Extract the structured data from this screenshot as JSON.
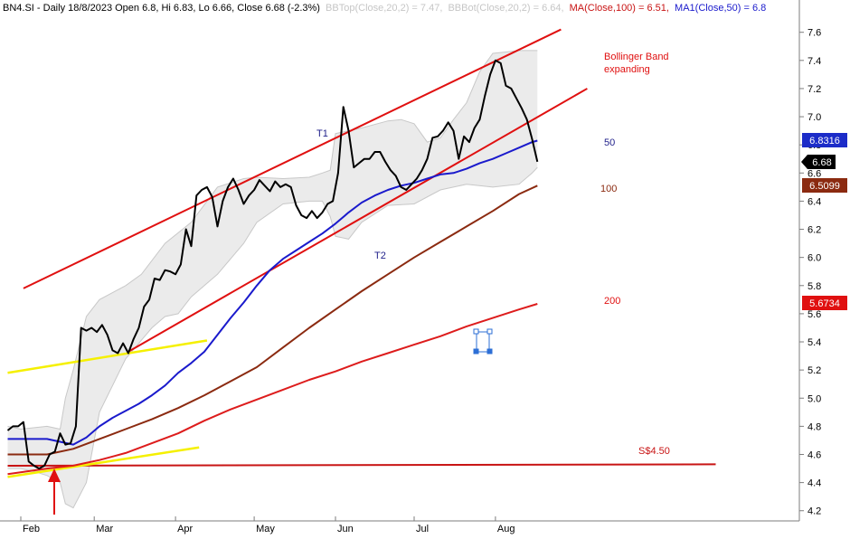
{
  "header": {
    "symbol_info": "BN4.SI - Daily 18/8/2023 Open 6.8, Hi 6.83, Lo 6.66, Close 6.68 (-2.3%)",
    "bbtop": "BBTop(Close,20,2) = 7.47,",
    "bbbot": "BBBot(Close,20,2) = 6.64,",
    "ma100": "MA(Close,100) = 6.51,",
    "ma50": "MA1(Close,50) = 6.8"
  },
  "colors": {
    "price": "#000000",
    "ma50": "#1a1acc",
    "ma100": "#8b2a10",
    "ma200": "#dd1c1c",
    "channel": "#e01010",
    "support": "#c81414",
    "yellow": "#f5f000",
    "band_fill": "#ebebeb",
    "band_edge": "#c8c8c8",
    "badge_ma50": "#1c2cc8",
    "badge_close": "#000000",
    "badge_ma100": "#8b2a10",
    "badge_ma200": "#e01010",
    "annot_red": "#e01010",
    "annot_navy": "#1f1f8a"
  },
  "annotations": {
    "t1": "T1",
    "t2": "T2",
    "bb_line1": "Bollinger Band",
    "bb_line2": "expanding",
    "label50": "50",
    "label100": "100",
    "label200": "200",
    "support": "S$4.50"
  },
  "badges": {
    "ma50": "6.8316",
    "close": "6.68",
    "ma100": "6.5099",
    "ma200": "5.6734"
  },
  "chart_data": {
    "type": "line",
    "x_range_days": [
      0,
      160
    ],
    "ylim": [
      4.15,
      7.75
    ],
    "y_ticks": [
      4.2,
      4.4,
      4.6,
      4.8,
      5.0,
      5.2,
      5.4,
      5.6,
      5.8,
      6.0,
      6.2,
      6.4,
      6.6,
      6.8,
      7.0,
      7.2,
      7.4,
      7.6
    ],
    "y_tick_labels": [
      "4.2",
      "4.4",
      "4.6",
      "4.8",
      "5.0",
      "5.2",
      "5.4",
      "5.6",
      "5.8",
      "6.0",
      "6.2",
      "6.4",
      "6.6",
      "6.8",
      "7.0",
      "7.2",
      "7.4",
      "7.6"
    ],
    "x_ticks": [
      {
        "label": "Feb",
        "day": 0
      },
      {
        "label": "Mar",
        "day": 28
      },
      {
        "label": "Apr",
        "day": 59
      },
      {
        "label": "May",
        "day": 89
      },
      {
        "label": "Jun",
        "day": 120
      },
      {
        "label": "Jul",
        "day": 150
      },
      {
        "label": "Aug",
        "day": 181
      }
    ],
    "series": [
      {
        "key": "close",
        "x": [
          -5,
          -3,
          -1,
          1,
          3,
          5,
          7,
          9,
          11,
          13,
          15,
          17,
          19,
          21,
          23,
          25,
          27,
          29,
          31,
          33,
          35,
          37,
          39,
          41,
          43,
          45,
          47,
          49,
          51,
          53,
          55,
          57,
          59,
          61,
          63,
          65,
          67,
          69,
          71,
          73,
          75,
          77,
          79,
          81,
          83,
          85,
          87,
          89,
          91,
          93,
          95,
          97,
          99,
          101,
          103,
          105,
          107,
          109,
          111,
          113,
          115,
          117,
          119,
          121,
          123,
          125,
          127,
          129,
          131,
          133,
          135,
          137,
          139,
          141,
          143,
          145,
          147,
          149,
          151,
          153,
          155,
          157,
          159,
          161,
          163,
          165,
          167,
          169,
          171,
          173,
          175,
          177,
          179,
          181,
          183,
          185,
          187,
          189,
          191,
          193,
          195,
          197
        ],
        "y": [
          4.77,
          4.8,
          4.8,
          4.83,
          4.55,
          4.52,
          4.5,
          4.52,
          4.6,
          4.62,
          4.75,
          4.67,
          4.68,
          4.8,
          5.5,
          5.48,
          5.5,
          5.47,
          5.52,
          5.45,
          5.34,
          5.32,
          5.39,
          5.32,
          5.42,
          5.5,
          5.65,
          5.7,
          5.85,
          5.84,
          5.91,
          5.9,
          5.88,
          5.95,
          6.2,
          6.08,
          6.44,
          6.48,
          6.5,
          6.43,
          6.22,
          6.4,
          6.5,
          6.56,
          6.48,
          6.38,
          6.44,
          6.48,
          6.55,
          6.51,
          6.47,
          6.54,
          6.5,
          6.52,
          6.5,
          6.37,
          6.3,
          6.28,
          6.33,
          6.28,
          6.32,
          6.38,
          6.4,
          6.6,
          7.07,
          6.9,
          6.64,
          6.67,
          6.7,
          6.7,
          6.75,
          6.75,
          6.68,
          6.62,
          6.58,
          6.5,
          6.48,
          6.52,
          6.56,
          6.62,
          6.7,
          6.85,
          6.86,
          6.9,
          6.96,
          6.9,
          6.7,
          6.86,
          6.82,
          6.92,
          6.98,
          7.15,
          7.3,
          7.4,
          7.38,
          7.22,
          7.2,
          7.13,
          7.06,
          6.98,
          6.84,
          6.68
        ]
      },
      {
        "key": "ma50",
        "x": [
          -5,
          5,
          10,
          15,
          20,
          25,
          30,
          35,
          40,
          45,
          50,
          55,
          60,
          65,
          70,
          75,
          80,
          85,
          90,
          95,
          100,
          105,
          110,
          115,
          120,
          125,
          130,
          135,
          140,
          145,
          150,
          155,
          160,
          165,
          170,
          175,
          180,
          185,
          190,
          195,
          197
        ],
        "y": [
          4.71,
          4.71,
          4.71,
          4.69,
          4.67,
          4.72,
          4.8,
          4.86,
          4.91,
          4.96,
          5.02,
          5.09,
          5.18,
          5.25,
          5.33,
          5.45,
          5.57,
          5.68,
          5.8,
          5.91,
          5.99,
          6.05,
          6.11,
          6.17,
          6.24,
          6.32,
          6.39,
          6.44,
          6.48,
          6.51,
          6.53,
          6.56,
          6.59,
          6.6,
          6.63,
          6.67,
          6.7,
          6.74,
          6.78,
          6.82,
          6.83
        ]
      },
      {
        "key": "ma100",
        "x": [
          -5,
          10,
          20,
          30,
          40,
          50,
          60,
          70,
          80,
          90,
          100,
          110,
          120,
          130,
          140,
          150,
          160,
          170,
          180,
          190,
          197
        ],
        "y": [
          4.6,
          4.6,
          4.64,
          4.71,
          4.78,
          4.85,
          4.93,
          5.02,
          5.12,
          5.22,
          5.36,
          5.5,
          5.63,
          5.76,
          5.88,
          6.0,
          6.11,
          6.22,
          6.33,
          6.45,
          6.51
        ]
      },
      {
        "key": "ma200",
        "x": [
          -5,
          10,
          20,
          30,
          40,
          50,
          60,
          70,
          80,
          90,
          100,
          110,
          120,
          130,
          140,
          150,
          160,
          170,
          180,
          190,
          197
        ],
        "y": [
          4.46,
          4.5,
          4.52,
          4.56,
          4.61,
          4.68,
          4.75,
          4.84,
          4.92,
          4.99,
          5.06,
          5.13,
          5.19,
          5.26,
          5.32,
          5.38,
          5.44,
          5.51,
          5.57,
          5.63,
          5.67
        ]
      },
      {
        "key": "bbtop",
        "x": [
          -5,
          0,
          10,
          15,
          17,
          20,
          25,
          30,
          40,
          46,
          55,
          65,
          75,
          85,
          90,
          100,
          110,
          115,
          118,
          120,
          130,
          140,
          145,
          150,
          155,
          160,
          165,
          170,
          175,
          180,
          185,
          190,
          195,
          197
        ],
        "y": [
          4.8,
          4.78,
          4.8,
          4.78,
          5.0,
          5.2,
          5.58,
          5.7,
          5.8,
          5.88,
          6.1,
          6.25,
          6.5,
          6.56,
          6.57,
          6.56,
          6.57,
          6.6,
          6.62,
          6.88,
          6.92,
          6.97,
          6.98,
          6.95,
          6.82,
          6.85,
          6.98,
          7.1,
          7.32,
          7.45,
          7.46,
          7.47,
          7.47,
          7.47
        ]
      },
      {
        "key": "bbbot",
        "x": [
          -5,
          0,
          5,
          10,
          15,
          17,
          20,
          25,
          30,
          40,
          45,
          50,
          55,
          60,
          65,
          75,
          85,
          90,
          100,
          110,
          115,
          118,
          120,
          125,
          130,
          140,
          150,
          160,
          170,
          180,
          190,
          195,
          197
        ],
        "y": [
          4.5,
          4.5,
          4.48,
          4.45,
          4.4,
          4.25,
          4.22,
          4.4,
          4.9,
          5.28,
          5.39,
          5.5,
          5.58,
          5.6,
          5.72,
          5.88,
          6.1,
          6.25,
          6.38,
          6.4,
          6.4,
          6.29,
          6.15,
          6.13,
          6.25,
          6.37,
          6.38,
          6.48,
          6.52,
          6.5,
          6.52,
          6.6,
          6.64
        ]
      }
    ],
    "trendlines": [
      {
        "key": "t1",
        "x": [
          1,
          206
        ],
        "y": [
          5.78,
          7.62
        ]
      },
      {
        "key": "t2",
        "x": [
          41,
          216
        ],
        "y": [
          5.33,
          7.2
        ]
      },
      {
        "key": "support",
        "x": [
          -5,
          265
        ],
        "y": [
          4.52,
          4.53
        ]
      },
      {
        "key": "yellow_upper",
        "x": [
          -5,
          71
        ],
        "y": [
          5.18,
          5.41
        ]
      },
      {
        "key": "yellow_lower",
        "x": [
          -5,
          68
        ],
        "y": [
          4.44,
          4.65
        ]
      }
    ]
  }
}
